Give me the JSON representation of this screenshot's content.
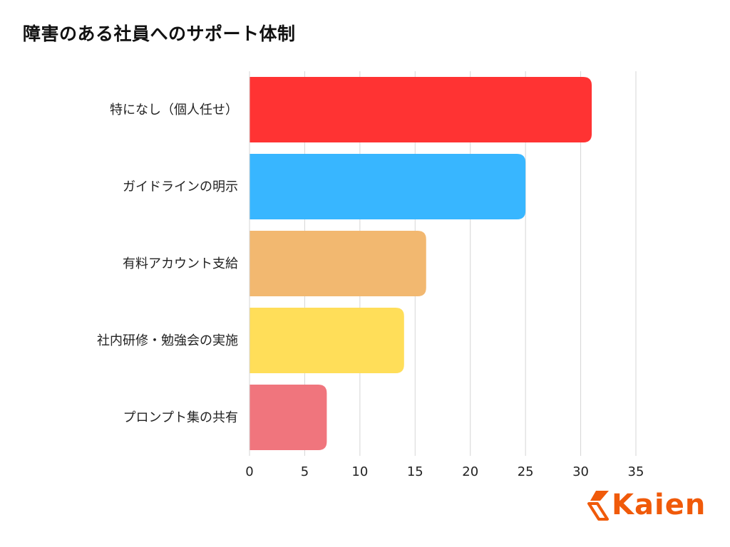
{
  "chart_data": {
    "type": "bar",
    "orientation": "horizontal",
    "title": "障害のある社員へのサポート体制",
    "categories": [
      "特になし（個人任せ）",
      "ガイドラインの明示",
      "有料アカウント支給",
      "社内研修・勉強会の実施",
      "プロンプト集の共有"
    ],
    "values": [
      31,
      25,
      16,
      14,
      7
    ],
    "colors": [
      "#ff3333",
      "#38b6ff",
      "#f2b870",
      "#ffde59",
      "#f0757d"
    ],
    "xlim": [
      0,
      35
    ],
    "xticks": [
      "0",
      "5",
      "10",
      "15",
      "20",
      "25",
      "30",
      "35"
    ],
    "xlabel": "",
    "ylabel": "",
    "grid": "vertical"
  },
  "logo": {
    "text": "Kaien",
    "color": "#f05a0a"
  }
}
